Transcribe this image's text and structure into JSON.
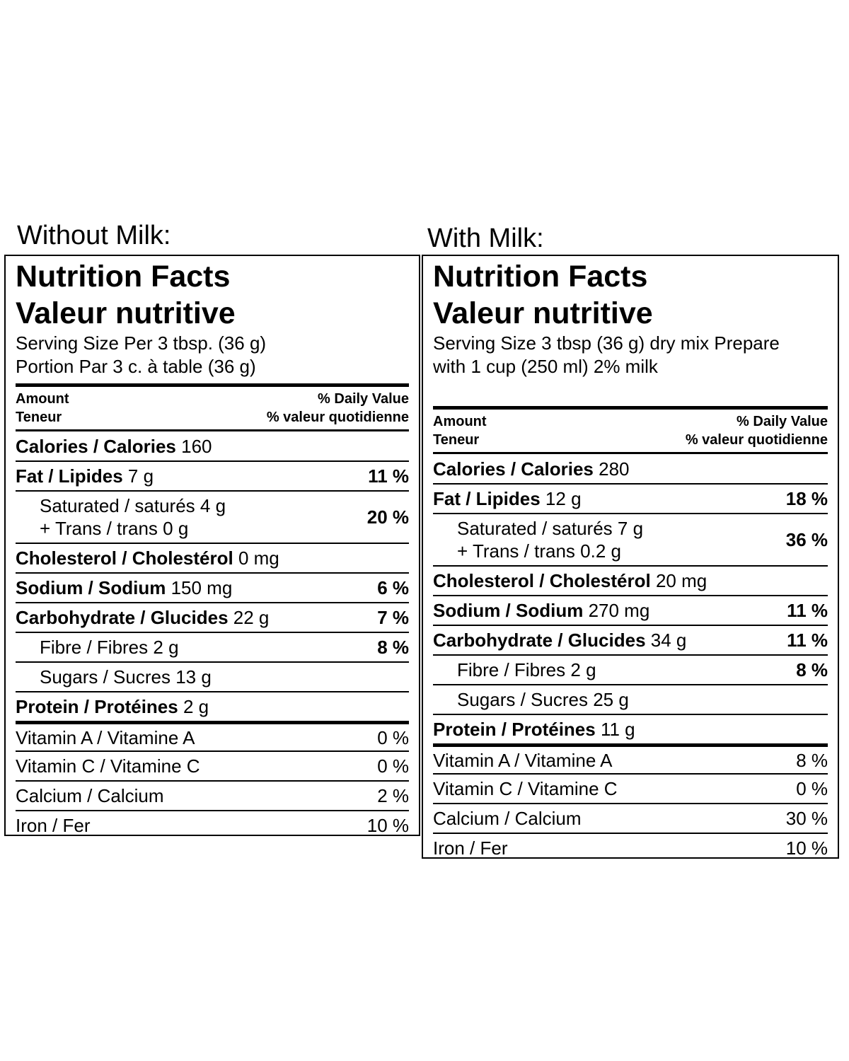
{
  "panels": [
    {
      "caption": "Without Milk:",
      "title_en": "Nutrition Facts",
      "title_fr": "Valeur nutritive",
      "serving_line1": "Serving Size Per 3 tbsp. (36 g)",
      "serving_line2": "Portion Par 3 c. à table (36 g)",
      "amount_en": "Amount",
      "amount_fr": "Teneur",
      "dv_en": "% Daily Value",
      "dv_fr": "% valeur quotidienne",
      "calories_label": "Calories / Calories",
      "calories_value": "160",
      "fat_label": "Fat / Lipides",
      "fat_value": "7 g",
      "fat_pct": "11 %",
      "sat_label": "Saturated / saturés",
      "sat_value": "4 g",
      "trans_label": "+ Trans / trans",
      "trans_value": "0 g",
      "sat_pct": "20 %",
      "chol_label": "Cholesterol / Cholestérol",
      "chol_value": "0 mg",
      "sodium_label": "Sodium / Sodium",
      "sodium_value": "150 mg",
      "sodium_pct": "6 %",
      "carb_label": "Carbohydrate / Glucides",
      "carb_value": "22 g",
      "carb_pct": "7 %",
      "fibre_label": "Fibre / Fibres",
      "fibre_value": "2 g",
      "fibre_pct": "8 %",
      "sugars_label": "Sugars / Sucres",
      "sugars_value": "13 g",
      "protein_label": "Protein / Protéines",
      "protein_value": "2 g",
      "vita_label": "Vitamin A / Vitamine A",
      "vita_pct": "0 %",
      "vitc_label": "Vitamin C / Vitamine C",
      "vitc_pct": "0 %",
      "calcium_label": "Calcium / Calcium",
      "calcium_pct": "2 %",
      "iron_label": "Iron / Fer",
      "iron_pct": "10 %"
    },
    {
      "caption": "With Milk:",
      "title_en": "Nutrition Facts",
      "title_fr": "Valeur nutritive",
      "serving_line1": "Serving Size 3 tbsp (36 g) dry mix  Prepare",
      "serving_line2": "with 1 cup (250 ml) 2% milk",
      "amount_en": "Amount",
      "amount_fr": "Teneur",
      "dv_en": "% Daily Value",
      "dv_fr": "% valeur quotidienne",
      "calories_label": "Calories / Calories",
      "calories_value": "280",
      "fat_label": "Fat / Lipides",
      "fat_value": "12 g",
      "fat_pct": "18 %",
      "sat_label": "Saturated / saturés",
      "sat_value": "7 g",
      "trans_label": "+ Trans / trans",
      "trans_value": "0.2 g",
      "sat_pct": "36 %",
      "chol_label": "Cholesterol / Cholestérol",
      "chol_value": "20 mg",
      "sodium_label": "Sodium / Sodium",
      "sodium_value": "270 mg",
      "sodium_pct": "11 %",
      "carb_label": "Carbohydrate / Glucides",
      "carb_value": "34 g",
      "carb_pct": "11 %",
      "fibre_label": "Fibre / Fibres",
      "fibre_value": "2 g",
      "fibre_pct": "8 %",
      "sugars_label": "Sugars / Sucres",
      "sugars_value": "25 g",
      "protein_label": "Protein / Protéines",
      "protein_value": "11 g",
      "vita_label": "Vitamin A / Vitamine A",
      "vita_pct": "8 %",
      "vitc_label": "Vitamin C / Vitamine C",
      "vitc_pct": "0 %",
      "calcium_label": "Calcium / Calcium",
      "calcium_pct": "30 %",
      "iron_label": "Iron / Fer",
      "iron_pct": "10 %"
    }
  ]
}
